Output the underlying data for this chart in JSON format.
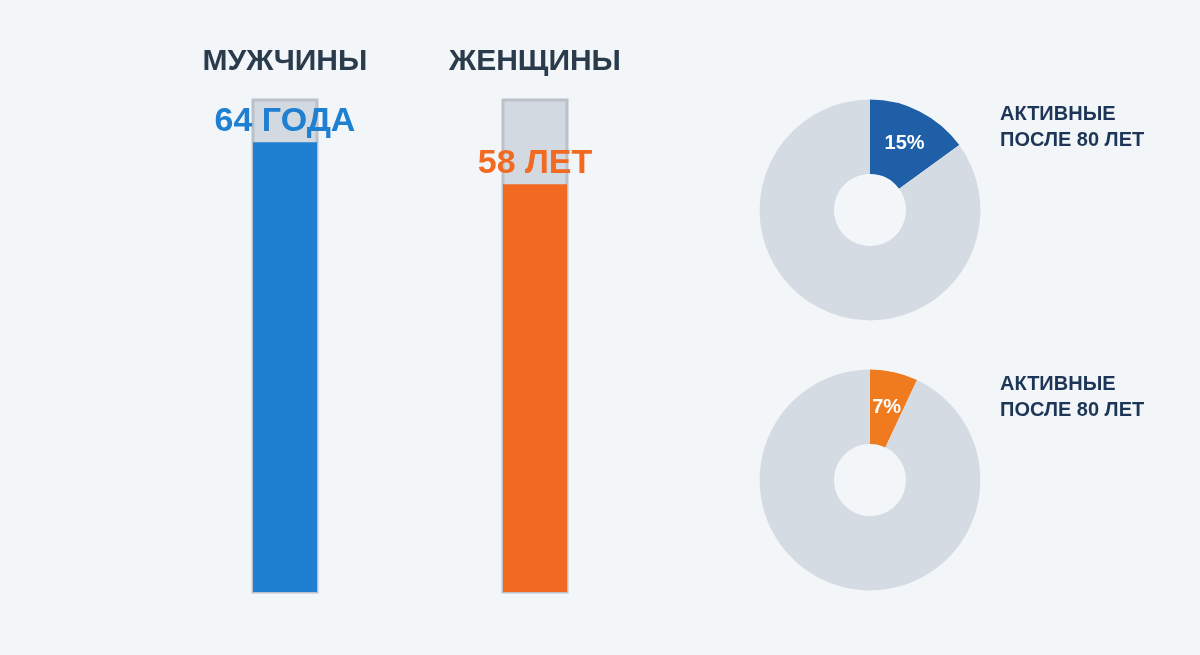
{
  "chart_data": [
    {
      "type": "bar",
      "categories": [
        "МУЖЧИНЫ",
        "ЖЕНЩИНЫ"
      ],
      "values": [
        64,
        58
      ],
      "value_labels": [
        "64 ГОДА",
        "58 ЛЕТ"
      ],
      "colors": [
        "#1f7fd0",
        "#f26a21"
      ],
      "tick_labels": "x"
    },
    {
      "type": "donut",
      "categories": [
        null,
        null
      ],
      "values": [
        15,
        85
      ],
      "colors": [
        "#1e5fa8",
        "#d5dbe2"
      ],
      "value_labels": [
        "15%",
        null
      ],
      "annotations": [
        "АКТИВНЫЕ\nПОСЛЕ 80 ЛЕТ"
      ]
    },
    {
      "type": "donut",
      "categories": [
        null,
        null
      ],
      "values": [
        7,
        93
      ],
      "colors": [
        "#f07a1e",
        "#d5dbe2"
      ],
      "value_labels": [
        "7%",
        null
      ],
      "annotations": [
        "АКТИВНЫЕ\nПОСЛЕ 80 ЛЕТ"
      ]
    }
  ]
}
